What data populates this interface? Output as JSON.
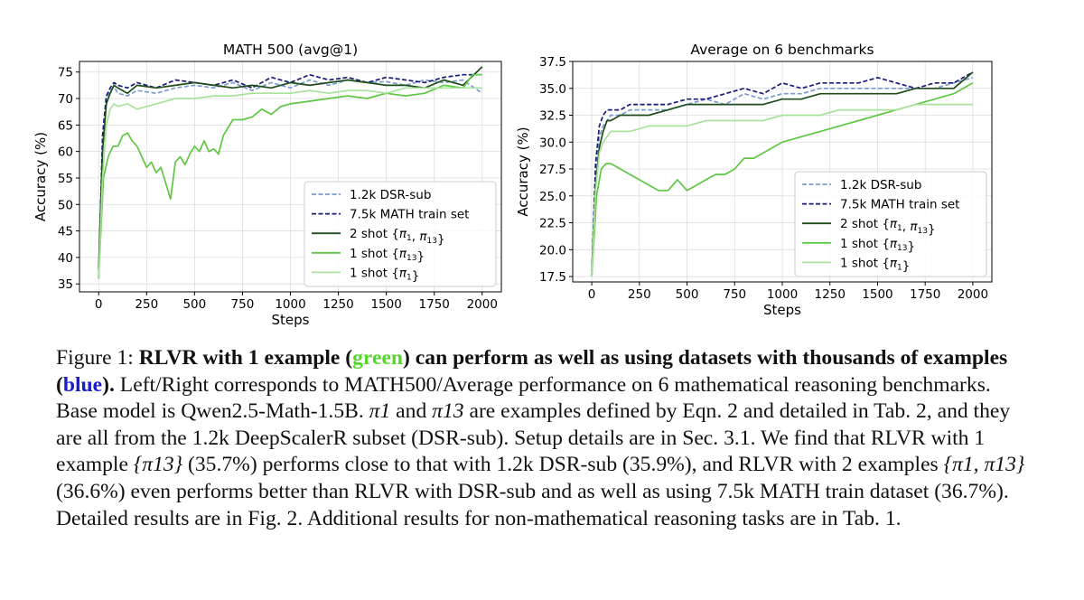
{
  "chart_data": [
    {
      "type": "line",
      "title": "MATH 500 (avg@1)",
      "xlabel": "Steps",
      "ylabel": "Accuracy (%)",
      "xlim": [
        -100,
        2100
      ],
      "ylim": [
        33.5,
        77
      ],
      "xticks": [
        0,
        250,
        500,
        750,
        1000,
        1250,
        1500,
        1750,
        2000
      ],
      "yticks": [
        35,
        40,
        45,
        50,
        55,
        60,
        65,
        70,
        75
      ],
      "grid": true,
      "legend_position": "bottom-right",
      "series": [
        {
          "name": "1.2k DSR-sub",
          "color": "#7b9bd1",
          "dash": "dashed",
          "x": [
            0,
            20,
            40,
            60,
            80,
            100,
            150,
            200,
            300,
            400,
            500,
            600,
            700,
            800,
            900,
            1000,
            1100,
            1200,
            1300,
            1400,
            1500,
            1600,
            1700,
            1800,
            1900,
            2000
          ],
          "y": [
            36.0,
            62.0,
            70.0,
            71.5,
            72.2,
            71.0,
            70.5,
            71.5,
            71.0,
            72.0,
            72.5,
            72.0,
            73.0,
            71.5,
            73.0,
            72.0,
            73.5,
            72.5,
            73.5,
            73.0,
            73.2,
            72.5,
            73.5,
            73.0,
            73.5,
            71.0
          ]
        },
        {
          "name": "7.5k MATH train set",
          "color": "#1a1a7a",
          "dash": "dashed",
          "x": [
            0,
            20,
            40,
            60,
            80,
            100,
            150,
            200,
            300,
            400,
            500,
            600,
            700,
            800,
            900,
            1000,
            1100,
            1200,
            1300,
            1400,
            1500,
            1600,
            1700,
            1800,
            1900,
            2000
          ],
          "y": [
            36.0,
            63.0,
            70.5,
            72.0,
            73.0,
            72.5,
            72.0,
            73.0,
            72.0,
            73.5,
            73.0,
            72.5,
            73.5,
            72.0,
            74.0,
            73.0,
            74.5,
            73.5,
            74.0,
            73.0,
            74.0,
            73.5,
            73.0,
            74.0,
            74.5,
            74.5
          ]
        },
        {
          "name": "2 shot {π1, π13}",
          "color": "#1f4d1a",
          "dash": "solid",
          "x": [
            0,
            20,
            40,
            60,
            80,
            100,
            150,
            200,
            300,
            400,
            500,
            600,
            700,
            800,
            900,
            1000,
            1100,
            1200,
            1300,
            1400,
            1500,
            1600,
            1700,
            1800,
            1900,
            2000
          ],
          "y": [
            38.0,
            60.0,
            69.0,
            71.0,
            72.5,
            72.0,
            71.0,
            72.5,
            72.0,
            72.5,
            73.0,
            72.5,
            72.0,
            72.5,
            72.0,
            73.0,
            72.5,
            73.0,
            73.5,
            73.0,
            72.5,
            72.5,
            72.0,
            73.5,
            72.5,
            76.0
          ]
        },
        {
          "name": "1 shot {π13}",
          "color": "#5fc743",
          "dash": "solid",
          "x": [
            0,
            25,
            50,
            75,
            100,
            125,
            150,
            175,
            200,
            225,
            250,
            275,
            300,
            325,
            350,
            375,
            400,
            425,
            450,
            475,
            500,
            525,
            550,
            575,
            600,
            625,
            650,
            700,
            750,
            800,
            850,
            900,
            950,
            1000,
            1100,
            1200,
            1300,
            1400,
            1500,
            1600,
            1700,
            1800,
            1900,
            1950,
            2000
          ],
          "y": [
            36.0,
            55.0,
            59.0,
            61.0,
            61.0,
            63.0,
            63.5,
            62.0,
            61.0,
            59.0,
            57.0,
            58.0,
            56.0,
            57.0,
            54.0,
            51.0,
            58.0,
            59.0,
            57.5,
            59.5,
            61.0,
            60.0,
            62.0,
            60.0,
            60.5,
            59.5,
            63.0,
            66.0,
            66.0,
            66.5,
            68.0,
            67.0,
            68.5,
            69.0,
            69.5,
            70.0,
            70.5,
            70.0,
            71.0,
            70.5,
            71.0,
            72.5,
            72.0,
            74.5,
            74.5
          ]
        },
        {
          "name": "1 shot {π1}",
          "color": "#a9e29a",
          "dash": "solid",
          "x": [
            0,
            20,
            40,
            60,
            80,
            100,
            150,
            200,
            300,
            400,
            500,
            600,
            700,
            800,
            900,
            1000,
            1100,
            1200,
            1300,
            1400,
            1500,
            1600,
            1700,
            1800,
            1900,
            2000
          ],
          "y": [
            36.0,
            55.0,
            65.0,
            68.0,
            69.0,
            68.5,
            69.0,
            68.0,
            69.0,
            70.0,
            70.0,
            70.5,
            70.5,
            71.0,
            71.0,
            71.0,
            71.5,
            71.0,
            71.5,
            71.5,
            71.0,
            72.0,
            72.0,
            72.0,
            72.0,
            72.0
          ]
        }
      ]
    },
    {
      "type": "line",
      "title": "Average on 6 benchmarks",
      "xlabel": "Steps",
      "ylabel": "Accuracy (%)",
      "xlim": [
        -100,
        2100
      ],
      "ylim": [
        17,
        37.5
      ],
      "xticks": [
        0,
        250,
        500,
        750,
        1000,
        1250,
        1500,
        1750,
        2000
      ],
      "yticks": [
        17.5,
        20.0,
        22.5,
        25.0,
        27.5,
        30.0,
        32.5,
        35.0,
        37.5
      ],
      "grid": true,
      "legend_position": "bottom-right",
      "series": [
        {
          "name": "1.2k DSR-sub",
          "color": "#7b9bd1",
          "dash": "dashed",
          "x": [
            0,
            20,
            40,
            60,
            80,
            100,
            150,
            200,
            300,
            400,
            500,
            600,
            700,
            800,
            900,
            1000,
            1100,
            1200,
            1300,
            1400,
            1500,
            1600,
            1700,
            1800,
            1900,
            2000
          ],
          "y": [
            17.5,
            27.0,
            30.5,
            31.5,
            32.0,
            32.5,
            32.5,
            33.0,
            33.0,
            33.0,
            33.5,
            34.0,
            33.5,
            34.5,
            34.0,
            34.5,
            34.5,
            35.0,
            35.0,
            35.0,
            35.0,
            35.0,
            35.0,
            35.0,
            35.5,
            36.0
          ]
        },
        {
          "name": "7.5k MATH train set",
          "color": "#1a1a7a",
          "dash": "dashed",
          "x": [
            0,
            20,
            40,
            60,
            80,
            100,
            150,
            200,
            300,
            400,
            500,
            600,
            700,
            800,
            900,
            1000,
            1100,
            1200,
            1300,
            1400,
            1500,
            1600,
            1700,
            1800,
            1900,
            2000
          ],
          "y": [
            17.5,
            28.0,
            31.5,
            32.5,
            33.0,
            33.0,
            33.0,
            33.5,
            33.5,
            33.5,
            34.0,
            34.0,
            34.5,
            35.0,
            34.5,
            35.5,
            35.0,
            35.5,
            35.5,
            35.5,
            36.0,
            35.5,
            35.0,
            35.5,
            35.5,
            36.5
          ]
        },
        {
          "name": "2 shot {π1, π13}",
          "color": "#1f4d1a",
          "dash": "solid",
          "x": [
            0,
            20,
            40,
            60,
            80,
            100,
            150,
            200,
            300,
            400,
            500,
            600,
            700,
            800,
            900,
            1000,
            1100,
            1200,
            1300,
            1400,
            1500,
            1600,
            1700,
            1800,
            1900,
            2000
          ],
          "y": [
            18.0,
            26.0,
            29.5,
            31.0,
            32.0,
            32.0,
            32.5,
            32.5,
            32.5,
            33.0,
            33.5,
            33.5,
            33.5,
            33.5,
            33.5,
            34.0,
            34.0,
            34.5,
            34.5,
            34.5,
            34.5,
            34.5,
            35.0,
            35.0,
            35.0,
            36.5
          ]
        },
        {
          "name": "1 shot {π13}",
          "color": "#5fc743",
          "dash": "solid",
          "x": [
            0,
            25,
            50,
            75,
            100,
            150,
            200,
            250,
            300,
            350,
            400,
            450,
            500,
            550,
            600,
            650,
            700,
            750,
            800,
            850,
            900,
            950,
            1000,
            1100,
            1200,
            1300,
            1400,
            1500,
            1600,
            1700,
            1800,
            1900,
            2000
          ],
          "y": [
            17.5,
            25.0,
            27.5,
            28.0,
            28.0,
            27.5,
            27.0,
            26.5,
            26.0,
            25.5,
            25.5,
            26.5,
            25.5,
            26.0,
            26.5,
            27.0,
            27.0,
            27.5,
            28.5,
            28.5,
            29.0,
            29.5,
            30.0,
            30.5,
            31.0,
            31.5,
            32.0,
            32.5,
            33.0,
            33.5,
            34.0,
            34.5,
            35.5
          ]
        },
        {
          "name": "1 shot {π1}",
          "color": "#a9e29a",
          "dash": "solid",
          "x": [
            0,
            20,
            40,
            60,
            80,
            100,
            150,
            200,
            300,
            400,
            500,
            600,
            700,
            800,
            900,
            1000,
            1100,
            1200,
            1300,
            1400,
            1500,
            1600,
            1700,
            1800,
            1900,
            2000
          ],
          "y": [
            17.5,
            25.5,
            29.0,
            30.0,
            30.5,
            31.0,
            31.0,
            31.0,
            31.5,
            31.5,
            31.5,
            32.0,
            32.0,
            32.0,
            32.0,
            32.5,
            32.5,
            32.5,
            33.0,
            33.0,
            33.0,
            33.0,
            33.5,
            33.5,
            33.5,
            33.5
          ]
        }
      ]
    }
  ],
  "caption": {
    "label": "Figure 1: ",
    "bold_a": "RLVR with 1 example (",
    "green_word": "green",
    "bold_b": ") can perform as well as using datasets with thousands of examples (",
    "blue_word": "blue",
    "bold_c": ").",
    "s1": " Left/Right corresponds to MATH500/Average performance on 6 mathematical reasoning benchmarks. Base model is Qwen2.5-Math-1.5B. ",
    "pi1": "π1",
    "s2": " and ",
    "pi13": "π13",
    "s3": " are examples defined by Eqn. 2 and detailed in Tab. 2, and they are all from the 1.2k DeepScalerR subset (DSR-sub). Setup details are in Sec. 3.1. We find that RLVR with 1 example ",
    "set1": "{π13}",
    "s4": " (35.7%) performs close to that with 1.2k DSR-sub (35.9%), and RLVR with 2 examples ",
    "set2": "{π1, π13}",
    "s5": " (36.6%) even performs better than RLVR with DSR-sub and as well as using 7.5k MATH train dataset (36.7%). Detailed results are in Fig. 2. Additional results for non-mathematical reasoning tasks are in Tab. 1."
  }
}
